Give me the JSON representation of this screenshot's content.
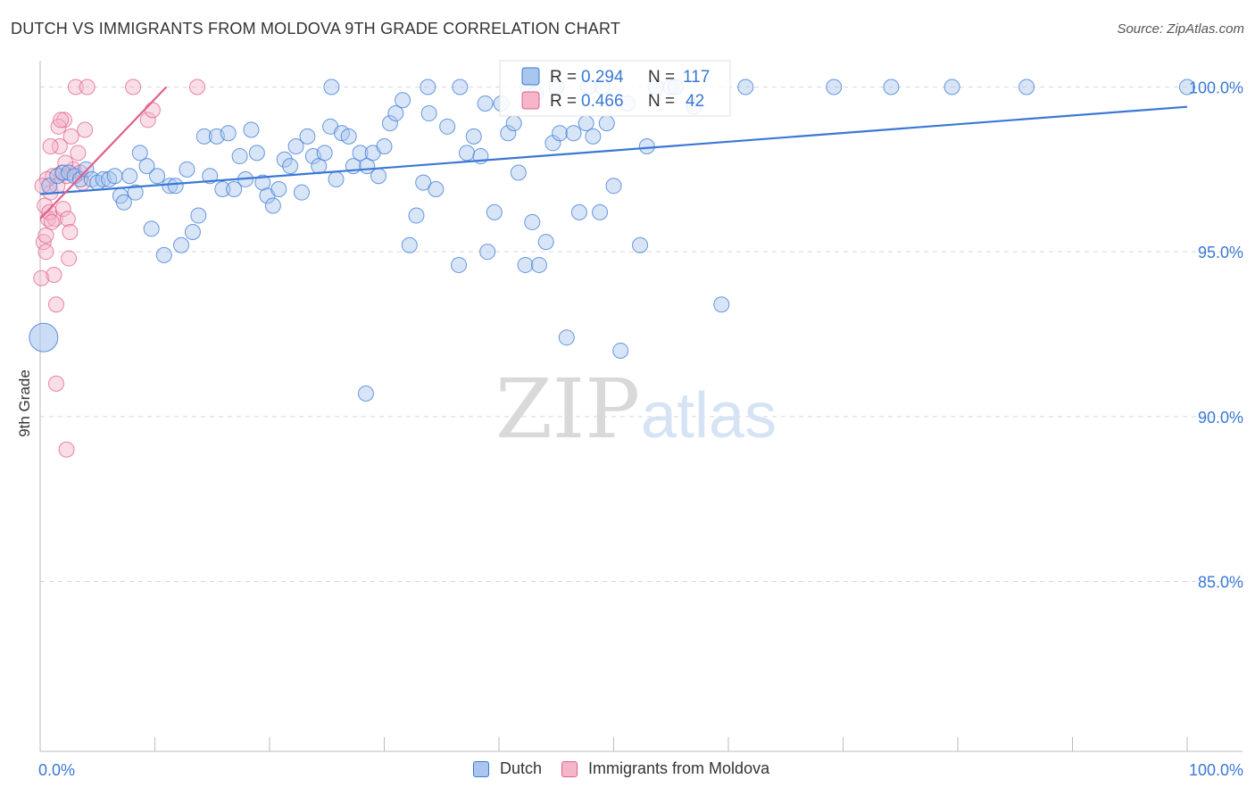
{
  "title": "DUTCH VS IMMIGRANTS FROM MOLDOVA 9TH GRADE CORRELATION CHART",
  "source": "Source: ZipAtlas.com",
  "watermark": {
    "zip": "ZIP",
    "atlas": "atlas"
  },
  "colors": {
    "blue": "#3a78d4",
    "blue_fill": "#a9c6ee",
    "pink": "#e0608c",
    "pink_fill": "#f5b6ca",
    "axis_text": "#3a78d4",
    "grid": "#d8d8d8"
  },
  "legend_box": {
    "rows": [
      {
        "r_label": "R =",
        "r_value": "0.294",
        "n_label": "N =",
        "n_value": "117",
        "series": "blue"
      },
      {
        "r_label": "R =",
        "r_value": "0.466",
        "n_label": "N =",
        "n_value": "42",
        "series": "pink"
      }
    ]
  },
  "legend_bottom": [
    {
      "label": "Dutch",
      "series": "blue"
    },
    {
      "label": "Immigrants from Moldova",
      "series": "pink"
    }
  ],
  "chart_data": {
    "type": "scatter",
    "title": "DUTCH VS IMMIGRANTS FROM MOLDOVA 9TH GRADE CORRELATION CHART",
    "xlabel": "",
    "ylabel": "9th Grade",
    "xlim": [
      0,
      100
    ],
    "ylim": [
      80.5,
      100.8
    ],
    "x_tick_labels": [
      {
        "value": 0,
        "label": "0.0%"
      },
      {
        "value": 100,
        "label": "100.0%"
      }
    ],
    "y_tick_labels": [
      {
        "value": 100,
        "label": "100.0%"
      },
      {
        "value": 95,
        "label": "95.0%"
      },
      {
        "value": 90,
        "label": "90.0%"
      },
      {
        "value": 85,
        "label": "85.0%"
      }
    ],
    "series": [
      {
        "name": "Dutch",
        "color": "blue",
        "r": 0.294,
        "n": 117,
        "trend": {
          "x": [
            0,
            100
          ],
          "y": [
            96.75,
            99.4
          ]
        },
        "points": [
          [
            0.8,
            97.0
          ],
          [
            1.5,
            97.3
          ],
          [
            2,
            97.4
          ],
          [
            2.5,
            97.4
          ],
          [
            3,
            97.3
          ],
          [
            3.5,
            97.2
          ],
          [
            4,
            97.5
          ],
          [
            4.5,
            97.2
          ],
          [
            5,
            97.1
          ],
          [
            5.5,
            97.2
          ],
          [
            6,
            97.2
          ],
          [
            6.5,
            97.3
          ],
          [
            7,
            96.7
          ],
          [
            7.3,
            96.5
          ],
          [
            7.8,
            97.3
          ],
          [
            8.3,
            96.8
          ],
          [
            8.7,
            98.0
          ],
          [
            9.3,
            97.6
          ],
          [
            9.7,
            95.7
          ],
          [
            10.2,
            97.3
          ],
          [
            10.8,
            94.9
          ],
          [
            11.3,
            97.0
          ],
          [
            11.8,
            97.0
          ],
          [
            12.3,
            95.2
          ],
          [
            12.8,
            97.5
          ],
          [
            13.3,
            95.6
          ],
          [
            13.8,
            96.1
          ],
          [
            14.3,
            98.5
          ],
          [
            14.8,
            97.3
          ],
          [
            15.4,
            98.5
          ],
          [
            15.9,
            96.9
          ],
          [
            16.4,
            98.6
          ],
          [
            16.9,
            96.9
          ],
          [
            17.4,
            97.9
          ],
          [
            17.9,
            97.2
          ],
          [
            18.4,
            98.7
          ],
          [
            18.9,
            98.0
          ],
          [
            19.4,
            97.1
          ],
          [
            19.8,
            96.7
          ],
          [
            20.3,
            96.4
          ],
          [
            20.8,
            96.9
          ],
          [
            21.3,
            97.8
          ],
          [
            21.8,
            97.6
          ],
          [
            22.3,
            98.2
          ],
          [
            22.8,
            96.8
          ],
          [
            23.3,
            98.5
          ],
          [
            23.8,
            97.9
          ],
          [
            24.3,
            97.6
          ],
          [
            24.8,
            98.0
          ],
          [
            25.3,
            98.8
          ],
          [
            25.8,
            97.2
          ],
          [
            26.3,
            98.6
          ],
          [
            26.9,
            98.5
          ],
          [
            27.3,
            97.6
          ],
          [
            27.9,
            98.0
          ],
          [
            28.5,
            97.6
          ],
          [
            29,
            98.0
          ],
          [
            29.5,
            97.3
          ],
          [
            30,
            98.2
          ],
          [
            30.5,
            98.9
          ],
          [
            31,
            99.2
          ],
          [
            31.6,
            99.6
          ],
          [
            32.2,
            95.2
          ],
          [
            32.8,
            96.1
          ],
          [
            33.4,
            97.1
          ],
          [
            33.9,
            99.2
          ],
          [
            34.5,
            96.9
          ],
          [
            35.5,
            98.8
          ],
          [
            36.5,
            94.6
          ],
          [
            37.2,
            98.0
          ],
          [
            37.8,
            98.5
          ],
          [
            38.4,
            97.9
          ],
          [
            39,
            95.0
          ],
          [
            39.6,
            96.2
          ],
          [
            40.2,
            99.5
          ],
          [
            40.8,
            98.6
          ],
          [
            41.3,
            98.9
          ],
          [
            41.7,
            97.4
          ],
          [
            42.3,
            94.6
          ],
          [
            42.9,
            95.9
          ],
          [
            43.5,
            94.6
          ],
          [
            44.1,
            95.3
          ],
          [
            44.7,
            98.3
          ],
          [
            45.3,
            98.6
          ],
          [
            45.9,
            92.4
          ],
          [
            46.5,
            98.6
          ],
          [
            47,
            96.2
          ],
          [
            47.6,
            98.9
          ],
          [
            48.2,
            98.5
          ],
          [
            48.8,
            96.2
          ],
          [
            49.4,
            98.9
          ],
          [
            50,
            97.0
          ],
          [
            50.6,
            92.0
          ],
          [
            51.2,
            99.5
          ],
          [
            52.3,
            95.2
          ],
          [
            52.9,
            98.2
          ],
          [
            53.7,
            100.0
          ],
          [
            55,
            100.0
          ],
          [
            57,
            99.4
          ],
          [
            59.4,
            93.4
          ],
          [
            61.5,
            100.0
          ],
          [
            69.2,
            100.0
          ],
          [
            74.2,
            100.0
          ],
          [
            79.5,
            100.0
          ],
          [
            86,
            100.0
          ],
          [
            100,
            100.0
          ],
          [
            33.8,
            100.0
          ],
          [
            36.6,
            100.0
          ],
          [
            38.8,
            99.5
          ],
          [
            42.5,
            100.0
          ],
          [
            45,
            100.0
          ],
          [
            49,
            100.0
          ],
          [
            25.4,
            100.0
          ],
          [
            28.4,
            90.7
          ],
          [
            43.2,
            99.8
          ],
          [
            47.8,
            100.0
          ],
          [
            55.4,
            100.0
          ]
        ],
        "large_point": [
          0.3,
          92.4
        ]
      },
      {
        "name": "Immigrants from Moldova",
        "color": "pink",
        "r": 0.466,
        "n": 42,
        "trend": {
          "x": [
            0,
            11
          ],
          "y": [
            96.0,
            100.0
          ]
        },
        "points": [
          [
            0.1,
            94.2
          ],
          [
            0.3,
            95.3
          ],
          [
            0.5,
            95.0
          ],
          [
            0.7,
            96.0
          ],
          [
            0.9,
            96.8
          ],
          [
            1.1,
            97.3
          ],
          [
            1.3,
            96.0
          ],
          [
            1.5,
            97.0
          ],
          [
            1.7,
            98.2
          ],
          [
            1.9,
            97.4
          ],
          [
            2.1,
            99.0
          ],
          [
            2.3,
            97.3
          ],
          [
            2.5,
            94.8
          ],
          [
            2.7,
            98.5
          ],
          [
            2.9,
            97.5
          ],
          [
            3.1,
            100.0
          ],
          [
            3.3,
            98.0
          ],
          [
            3.5,
            97.4
          ],
          [
            3.7,
            97.1
          ],
          [
            3.9,
            98.7
          ],
          [
            4.1,
            100.0
          ],
          [
            0.4,
            96.4
          ],
          [
            0.6,
            97.2
          ],
          [
            0.8,
            96.2
          ],
          [
            1.0,
            95.9
          ],
          [
            1.2,
            94.3
          ],
          [
            1.4,
            93.4
          ],
          [
            1.6,
            98.8
          ],
          [
            1.8,
            99.0
          ],
          [
            2.0,
            96.3
          ],
          [
            2.2,
            97.7
          ],
          [
            2.4,
            96.0
          ],
          [
            2.6,
            95.6
          ],
          [
            1.4,
            91.0
          ],
          [
            2.3,
            89.0
          ],
          [
            8.1,
            100.0
          ],
          [
            9.4,
            99.0
          ],
          [
            9.8,
            99.3
          ],
          [
            13.7,
            100.0
          ],
          [
            0.2,
            97.0
          ],
          [
            0.5,
            95.5
          ],
          [
            0.9,
            98.2
          ]
        ]
      }
    ]
  }
}
